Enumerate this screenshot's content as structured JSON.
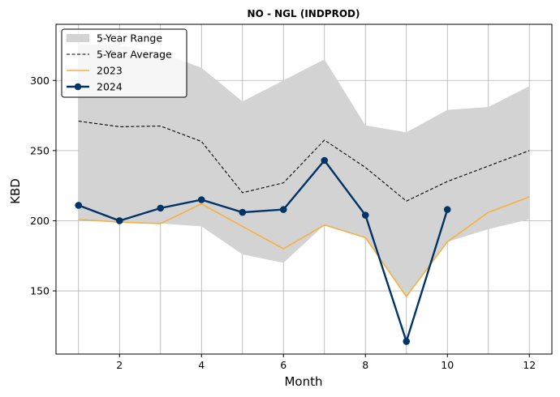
{
  "chart_data": {
    "type": "line",
    "title": "NO - NGL (INDPROD)",
    "xlabel": "Month",
    "ylabel": "KBD",
    "xlim": [
      0.45,
      12.55
    ],
    "ylim": [
      105,
      340
    ],
    "xticks": [
      2,
      4,
      6,
      8,
      10,
      12
    ],
    "yticks": [
      150,
      200,
      250,
      300
    ],
    "grid": true,
    "legend_position": "top-left",
    "legend": [
      "5-Year Range",
      "5-Year Average",
      "2023",
      "2024"
    ],
    "range": {
      "name": "5-Year Range",
      "color": "#d3d3d3",
      "x": [
        1,
        2,
        3,
        4,
        5,
        6,
        7,
        8,
        9,
        10,
        11,
        12
      ],
      "min": [
        201,
        199,
        198,
        196,
        176,
        170,
        197,
        188,
        146,
        185,
        194,
        201
      ],
      "max": [
        326,
        325,
        320,
        309,
        285,
        300,
        315,
        268,
        263,
        279,
        281,
        296
      ]
    },
    "series": [
      {
        "name": "5-Year Average",
        "color": "#000000",
        "style": "dashed",
        "x": [
          1,
          2,
          3,
          4,
          5,
          6,
          7,
          8,
          9,
          10,
          11,
          12
        ],
        "values": [
          271,
          267,
          267.5,
          256.5,
          220,
          227,
          257.5,
          238,
          214,
          228,
          239,
          250
        ]
      },
      {
        "name": "2023",
        "color": "#f5b041",
        "style": "solid",
        "x": [
          1,
          2,
          3,
          4,
          5,
          6,
          7,
          8,
          9,
          10,
          11,
          12
        ],
        "values": [
          201,
          199,
          198,
          212,
          196,
          180,
          197,
          188,
          146,
          185,
          206,
          217
        ]
      },
      {
        "name": "2024",
        "color": "#003366",
        "style": "solid-markers",
        "x": [
          1,
          2,
          3,
          4,
          5,
          6,
          7,
          8,
          9,
          10
        ],
        "values": [
          211,
          200,
          209,
          215,
          206,
          208,
          243,
          204,
          114,
          208
        ]
      }
    ]
  }
}
